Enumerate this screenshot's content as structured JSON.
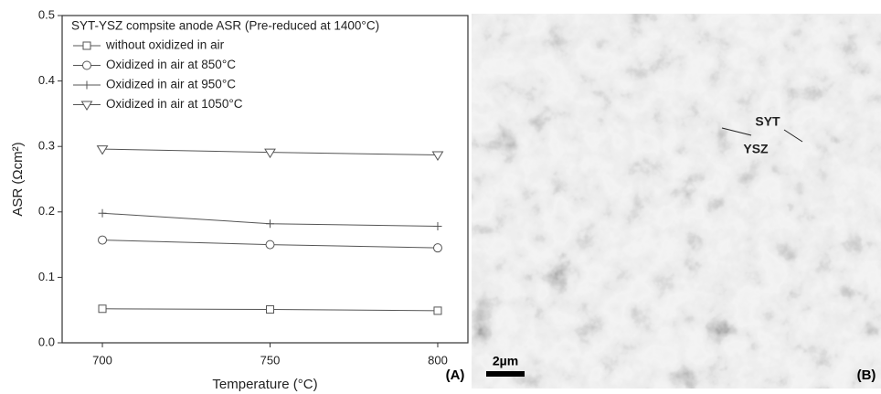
{
  "chart_data": {
    "type": "line",
    "legend_title": "SYT-YSZ compsite anode ASR (Pre-reduced at 1400°C)",
    "x_label": "Temperature (°C)",
    "y_label": "ASR (Ωcm²)",
    "panel_label": "(A)",
    "x": [
      700,
      750,
      800
    ],
    "series": [
      {
        "name": "without oxidized in air",
        "color": "#555555",
        "marker": "square",
        "values": [
          0.052,
          0.051,
          0.049
        ]
      },
      {
        "name": "Oxidized in air at 850°C",
        "color": "#555555",
        "marker": "circle",
        "values": [
          0.157,
          0.15,
          0.145
        ]
      },
      {
        "name": "Oxidized in air at 950°C",
        "color": "#555555",
        "marker": "plus",
        "values": [
          0.198,
          0.182,
          0.178
        ]
      },
      {
        "name": "Oxidized in air at 1050°C",
        "color": "#555555",
        "marker": "triangle-down",
        "values": [
          0.296,
          0.291,
          0.287
        ]
      }
    ],
    "xlim": [
      688,
      809
    ],
    "xticks": [
      700,
      750,
      800
    ],
    "ylim": [
      0,
      0.5
    ],
    "yticks": [
      {
        "value": 0,
        "label": "0.0"
      },
      0.1,
      0.2,
      0.3,
      0.4,
      0.5
    ],
    "legend": "upper left"
  },
  "micrograph": {
    "labels": [
      "SYT",
      "YSZ"
    ],
    "scale_bar": "2µm",
    "panel_label": "(B)"
  }
}
